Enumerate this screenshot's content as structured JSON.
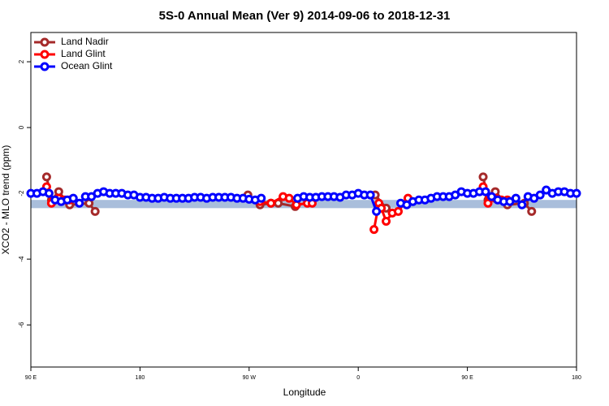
{
  "chart_data": {
    "type": "line",
    "title": "5S-0 Annual Mean (Ver 9)   2014-09-06 to 2018-12-31",
    "x_label": "Longitude",
    "y_label": "XCO2 - MLO trend (ppm)",
    "xlim": [
      90,
      540
    ],
    "ylim": [
      -7.28,
      2.89
    ],
    "xticks": [
      {
        "value": 90,
        "label": "90 E"
      },
      180,
      {
        "value": 270,
        "label": "90 W"
      },
      {
        "value": 360,
        "label": "0"
      },
      {
        "value": 450,
        "label": "90 E"
      },
      {
        "value": 540,
        "label": "180"
      }
    ],
    "yticks": [
      -6,
      -4,
      -2,
      0,
      2
    ],
    "legend": "top-left",
    "shaded_band": {
      "ymin": -2.45,
      "ymax": -2.2,
      "color": "#a9bedb"
    },
    "series": [
      {
        "name": "Land Nadir",
        "color": "#a52a2a",
        "x": [
          103,
          107,
          113,
          122,
          138,
          143,
          null,
          269,
          279,
          288,
          294,
          308,
          null,
          374,
          383,
          null,
          463,
          467,
          473,
          483,
          497,
          503
        ],
        "values": [
          -1.5,
          -2.2,
          -1.95,
          -2.35,
          -2.3,
          -2.55,
          null,
          -2.05,
          -2.35,
          -2.3,
          -2.3,
          -2.4,
          null,
          -2.05,
          -2.45,
          null,
          -1.5,
          -2.2,
          -1.95,
          -2.35,
          -2.3,
          -2.55
        ]
      },
      {
        "name": "Land Glint",
        "color": "#ff0000",
        "x": [
          103,
          107,
          113,
          118,
          122,
          null,
          279,
          288,
          298,
          303,
          309,
          318,
          322,
          null,
          373,
          377,
          379,
          383,
          388,
          393,
          401,
          null,
          463,
          467,
          473,
          478,
          483
        ],
        "values": [
          -1.8,
          -2.3,
          -2.15,
          -2.2,
          -2.2,
          null,
          -2.25,
          -2.3,
          -2.1,
          -2.15,
          -2.35,
          -2.3,
          -2.3,
          null,
          -3.1,
          -2.3,
          -2.45,
          -2.85,
          -2.6,
          -2.55,
          -2.15,
          null,
          -1.8,
          -2.3,
          -2.15,
          -2.2,
          -2.2
        ]
      },
      {
        "name": "Ocean Glint",
        "color": "#0000ff",
        "x": [
          90,
          95,
          100,
          105,
          110,
          115,
          120,
          125,
          130,
          135,
          140,
          145,
          150,
          155,
          160,
          165,
          170,
          175,
          180,
          185,
          190,
          195,
          200,
          205,
          210,
          215,
          220,
          225,
          230,
          235,
          240,
          245,
          250,
          255,
          260,
          265,
          270,
          275,
          280,
          285,
          290,
          295,
          300,
          305,
          310,
          315,
          320,
          325,
          330,
          335,
          340,
          345,
          350,
          355,
          360,
          365,
          370,
          375,
          380,
          385,
          390,
          395,
          400,
          405,
          410,
          415,
          420,
          425,
          430,
          435,
          440,
          445,
          450,
          455,
          460,
          465,
          470,
          475,
          480,
          485,
          490,
          495,
          500,
          505,
          510,
          515,
          520,
          525,
          530,
          535,
          540
        ],
        "values": [
          -2.0,
          -2.0,
          -1.95,
          -2.0,
          -2.2,
          -2.25,
          -2.2,
          -2.15,
          -2.3,
          -2.1,
          -2.1,
          -2.0,
          -1.95,
          -2.0,
          -2.0,
          -2.0,
          -2.05,
          -2.05,
          -2.12,
          -2.12,
          -2.15,
          -2.15,
          -2.12,
          -2.15,
          -2.15,
          -2.15,
          -2.15,
          -2.12,
          -2.12,
          -2.15,
          -2.12,
          -2.12,
          -2.12,
          -2.12,
          -2.15,
          -2.15,
          -2.18,
          -2.2,
          -2.15,
          null,
          null,
          null,
          null,
          null,
          -2.15,
          -2.1,
          -2.12,
          -2.12,
          -2.1,
          -2.1,
          -2.1,
          -2.12,
          -2.05,
          -2.05,
          -2.0,
          -2.05,
          -2.05,
          -2.55,
          null,
          null,
          null,
          -2.3,
          -2.35,
          -2.25,
          -2.2,
          -2.2,
          -2.15,
          -2.1,
          -2.1,
          -2.1,
          -2.05,
          -1.95,
          -2.0,
          -2.0,
          -1.95,
          -1.95,
          -2.1,
          -2.2,
          -2.25,
          -2.25,
          -2.15,
          -2.35,
          -2.1,
          -2.15,
          -2.05,
          -1.9,
          -2.0,
          -1.95,
          -1.95,
          -2.0,
          -2.0
        ]
      }
    ]
  }
}
